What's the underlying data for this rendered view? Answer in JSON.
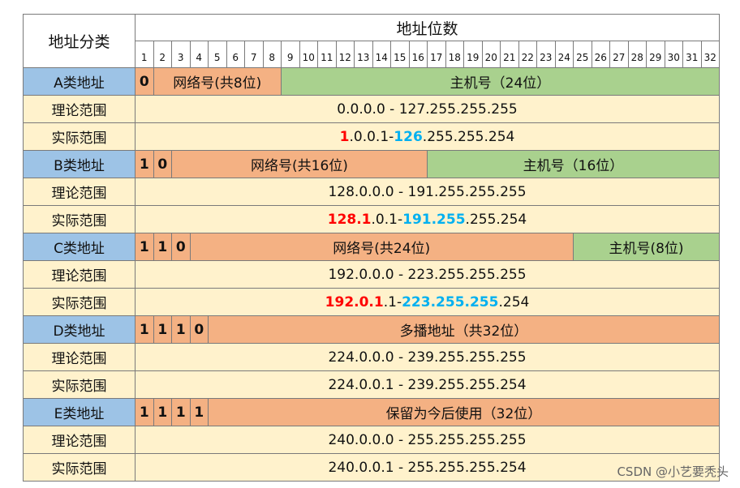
{
  "header": {
    "category_title": "地址分类",
    "bits_title": "地址位数",
    "bit_numbers": [
      "1",
      "2",
      "3",
      "4",
      "5",
      "6",
      "7",
      "8",
      "9",
      "10",
      "11",
      "12",
      "13",
      "14",
      "15",
      "16",
      "17",
      "18",
      "19",
      "20",
      "21",
      "22",
      "23",
      "24",
      "25",
      "26",
      "27",
      "28",
      "29",
      "30",
      "31",
      "32"
    ]
  },
  "labels": {
    "theory": "理论范围",
    "actual": "实际范围"
  },
  "classes": [
    {
      "name": "A类地址",
      "bits": [
        "0"
      ],
      "net_label": "网络号(共8位)",
      "host_label": "主机号（24位）",
      "theory_range": "0.0.0.0 - 127.255.255.255",
      "actual": {
        "start_red": "1",
        "start_rest": ".0.0.1",
        "sep": " - ",
        "end_blue": "126",
        "end_rest": ".255.255.254"
      }
    },
    {
      "name": "B类地址",
      "bits": [
        "1",
        "0"
      ],
      "net_label": "网络号(共16位)",
      "host_label": "主机号（16位）",
      "theory_range": "128.0.0.0 - 191.255.255.255",
      "actual": {
        "start_red": "128.1",
        "start_rest": ".0.1",
        "sep": " - ",
        "end_blue": "191.255",
        "end_rest": ".255.254"
      }
    },
    {
      "name": "C类地址",
      "bits": [
        "1",
        "1",
        "0"
      ],
      "net_label": "网络号(共24位)",
      "host_label": "主机号(8位)",
      "theory_range": "192.0.0.0 - 223.255.255.255",
      "actual": {
        "start_red": "192.0.1",
        "start_rest": ".1",
        "sep": " - ",
        "end_blue": "223.255.255",
        "end_rest": ".254"
      }
    },
    {
      "name": "D类地址",
      "bits": [
        "1",
        "1",
        "1",
        "0"
      ],
      "span_label": "多播地址（共32位）",
      "theory_range": "224.0.0.0 - 239.255.255.255",
      "actual_text": "224.0.0.1 - 239.255.255.254"
    },
    {
      "name": "E类地址",
      "bits": [
        "1",
        "1",
        "1",
        "1"
      ],
      "span_label": "保留为今后使用（32位）",
      "theory_range": "240.0.0.0 - 255.255.255.255",
      "actual_text": "240.0.0.1 - 255.255.255.254"
    }
  ],
  "watermark": "CSDN @小艺要秃头",
  "colors": {
    "class_blue": "#9dc3e6",
    "network_orange": "#f4b183",
    "host_green": "#a9d18e",
    "range_yellow": "#fff2cc",
    "highlight_red": "#ff0000",
    "highlight_blue": "#00b0f0"
  }
}
